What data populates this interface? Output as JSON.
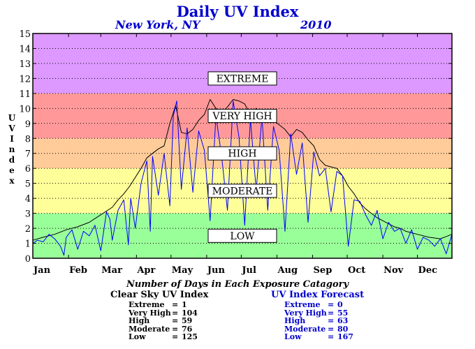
{
  "title": "Daily UV Index",
  "location": "New York, NY",
  "year": "2010",
  "ylabel_letters": [
    "U",
    "V",
    " ",
    "I",
    "n",
    "d",
    "e",
    "x"
  ],
  "counts_title": "Number of Days in Each Exposure Catagory",
  "clear_sky": {
    "title": "Clear Sky UV Index",
    "rows": [
      {
        "label": "Extreme",
        "value": "1"
      },
      {
        "label": "Very High",
        "value": "104"
      },
      {
        "label": "High",
        "value": "59"
      },
      {
        "label": "Moderate",
        "value": "76"
      },
      {
        "label": "Low",
        "value": "125"
      }
    ]
  },
  "forecast": {
    "title": "UV Index Forecast",
    "rows": [
      {
        "label": "Extreme",
        "value": "0"
      },
      {
        "label": "Very High",
        "value": "55"
      },
      {
        "label": "High",
        "value": "63"
      },
      {
        "label": "Moderate",
        "value": "80"
      },
      {
        "label": "Low",
        "value": "167"
      }
    ]
  },
  "colors": {
    "title": "#0000cc",
    "forecast_line": "#0000ff",
    "clear_sky_line": "#000000"
  },
  "chart_data": {
    "type": "line",
    "xlabel": "",
    "ylabel": "UV Index",
    "ylim": [
      0,
      15
    ],
    "yticks": [
      0,
      1,
      2,
      3,
      4,
      5,
      6,
      7,
      8,
      9,
      10,
      11,
      12,
      13,
      14,
      15
    ],
    "xlim": [
      1,
      365
    ],
    "months": [
      "Jan",
      "Feb",
      "Mar",
      "Apr",
      "May",
      "Jun",
      "Jul",
      "Aug",
      "Sep",
      "Oct",
      "Nov",
      "Dec"
    ],
    "month_start_days": [
      1,
      32,
      60,
      91,
      121,
      152,
      182,
      213,
      244,
      274,
      305,
      335
    ],
    "grid": true,
    "bands": [
      {
        "label": "LOW",
        "from": 0,
        "to": 3,
        "color": "#99ff99"
      },
      {
        "label": "MODERATE",
        "from": 3,
        "to": 6,
        "color": "#ffff99"
      },
      {
        "label": "HIGH",
        "from": 6,
        "to": 8,
        "color": "#ffcc99"
      },
      {
        "label": "VERY HIGH",
        "from": 8,
        "to": 11,
        "color": "#ff9999"
      },
      {
        "label": "EXTREME",
        "from": 11,
        "to": 15,
        "color": "#dd99ff"
      }
    ],
    "series": [
      {
        "key": "clear_sky",
        "x": [
          1,
          10,
          20,
          30,
          40,
          50,
          60,
          70,
          75,
          80,
          85,
          90,
          95,
          100,
          105,
          110,
          115,
          120,
          125,
          130,
          135,
          140,
          145,
          150,
          155,
          160,
          165,
          170,
          175,
          180,
          185,
          190,
          195,
          200,
          205,
          210,
          215,
          220,
          225,
          230,
          235,
          240,
          245,
          250,
          255,
          260,
          265,
          270,
          275,
          280,
          285,
          290,
          295,
          300,
          305,
          310,
          315,
          320,
          325,
          330,
          335,
          345,
          355,
          365
        ],
        "values": [
          1.2,
          1.4,
          1.6,
          1.9,
          2.1,
          2.4,
          2.9,
          3.4,
          3.9,
          4.3,
          4.8,
          5.4,
          6.0,
          6.7,
          7.0,
          7.3,
          7.5,
          9.0,
          10.2,
          8.4,
          8.3,
          8.6,
          9.2,
          9.6,
          10.6,
          10.0,
          9.7,
          10.1,
          10.6,
          10.5,
          10.3,
          9.6,
          10.0,
          9.3,
          9.6,
          9.2,
          8.9,
          8.6,
          8.1,
          8.6,
          8.4,
          7.9,
          7.5,
          6.6,
          6.2,
          6.1,
          6.0,
          5.5,
          4.8,
          4.3,
          3.7,
          3.3,
          3.0,
          2.7,
          2.5,
          2.3,
          2.1,
          2.0,
          1.8,
          1.7,
          1.6,
          1.4,
          1.3,
          1.6
        ]
      },
      {
        "key": "forecast",
        "x": [
          1,
          5,
          10,
          15,
          20,
          25,
          28,
          30,
          35,
          40,
          45,
          50,
          55,
          60,
          65,
          68,
          70,
          75,
          80,
          84,
          86,
          90,
          95,
          100,
          103,
          105,
          110,
          115,
          120,
          123,
          126,
          130,
          135,
          140,
          145,
          150,
          155,
          160,
          165,
          170,
          175,
          180,
          185,
          190,
          195,
          200,
          205,
          210,
          215,
          220,
          225,
          230,
          235,
          240,
          245,
          250,
          255,
          260,
          265,
          270,
          275,
          280,
          285,
          290,
          295,
          300,
          305,
          310,
          315,
          320,
          325,
          330,
          335,
          340,
          345,
          350,
          355,
          360,
          365
        ],
        "values": [
          1.0,
          1.2,
          1.1,
          1.6,
          1.3,
          0.8,
          0.2,
          1.4,
          1.9,
          0.6,
          1.8,
          1.5,
          2.2,
          0.5,
          3.1,
          2.6,
          1.2,
          3.2,
          3.9,
          0.9,
          4.0,
          2.0,
          5.0,
          6.5,
          1.8,
          6.8,
          4.2,
          7.0,
          3.5,
          9.5,
          10.5,
          4.6,
          8.7,
          4.4,
          8.5,
          7.2,
          2.5,
          9.5,
          6.8,
          3.2,
          10.5,
          8.1,
          2.2,
          9.3,
          4.5,
          9.5,
          3.2,
          8.8,
          7.2,
          1.8,
          8.3,
          5.6,
          7.7,
          2.4,
          7.1,
          5.5,
          6.0,
          3.1,
          5.8,
          5.5,
          0.8,
          3.9,
          3.8,
          2.9,
          2.2,
          3.2,
          1.3,
          2.4,
          1.8,
          2.0,
          1.0,
          1.9,
          0.6,
          1.4,
          1.2,
          0.8,
          1.3,
          0.3,
          1.6
        ]
      }
    ]
  }
}
